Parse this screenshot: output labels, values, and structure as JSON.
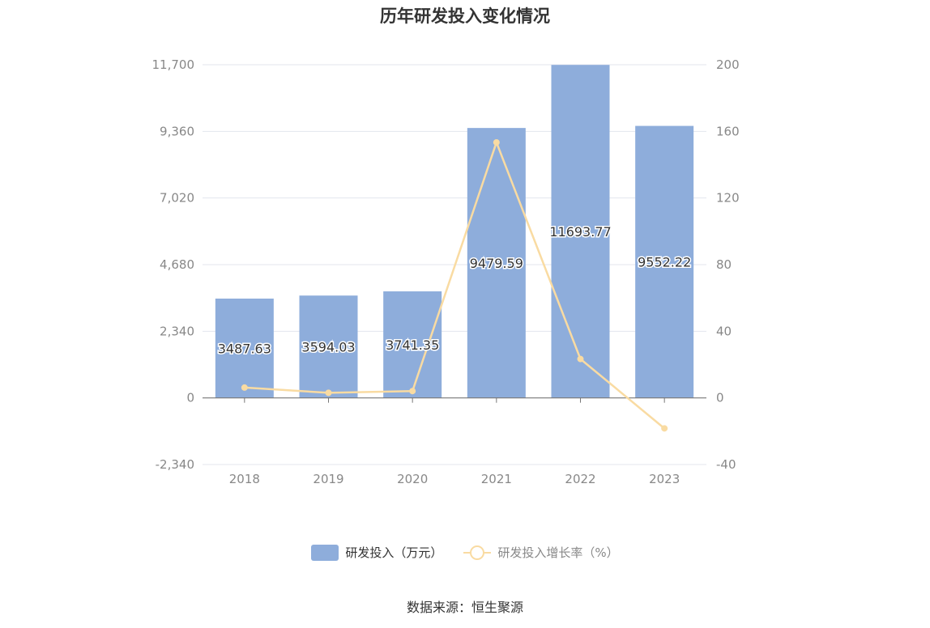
{
  "chart_data": {
    "type": "bar",
    "title": "历年研发投入变化情况",
    "categories": [
      "2018",
      "2019",
      "2020",
      "2021",
      "2022",
      "2023"
    ],
    "series": [
      {
        "name": "研发投入（万元）",
        "type": "bar",
        "axis": "left",
        "values": [
          3487.63,
          3594.03,
          3741.35,
          9479.59,
          11693.77,
          9552.22
        ],
        "labels": [
          "3487.63",
          "3594.03",
          "3741.35",
          "9479.59",
          "11693.77",
          "9552.22"
        ],
        "color": "#8eaddb"
      },
      {
        "name": "研发投入增长率（%）",
        "type": "line",
        "axis": "right",
        "values": [
          6.2,
          3.05,
          4.1,
          153.37,
          23.36,
          -18.31
        ],
        "color": "#f9dba2"
      }
    ],
    "y_left": {
      "min": -2340,
      "max": 11700,
      "ticks": [
        -2340,
        0,
        2340,
        4680,
        7020,
        9360,
        11700
      ],
      "tick_labels": [
        "-2,340",
        "0",
        "2,340",
        "4,680",
        "7,020",
        "9,360",
        "11,700"
      ]
    },
    "y_right": {
      "min": -40,
      "max": 200,
      "ticks": [
        -40,
        0,
        40,
        80,
        120,
        160,
        200
      ],
      "tick_labels": [
        "-40",
        "0",
        "40",
        "80",
        "120",
        "160",
        "200"
      ]
    },
    "grid": true,
    "legend_position": "bottom"
  },
  "source": "数据来源：恒生聚源"
}
